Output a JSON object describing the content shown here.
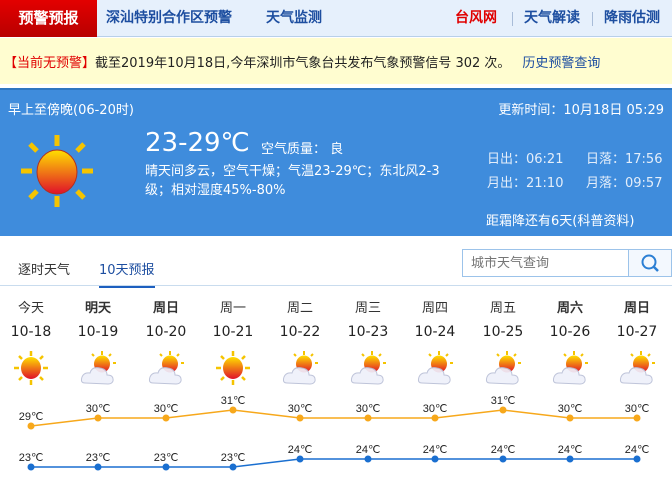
{
  "nav": {
    "active": "预警预报",
    "items": [
      "深汕特别合作区预警",
      "天气监测"
    ],
    "right": [
      {
        "label": "台风网",
        "color": "#e00000"
      },
      {
        "label": "天气解读",
        "color": "#1d4ea0"
      },
      {
        "label": "降雨估测",
        "color": "#1d4ea0"
      }
    ]
  },
  "warning": {
    "status": "【当前无预警】",
    "text": "截至2019年10月18日,今年深圳市气象台共发布气象预警信号 302 次。",
    "link": "历史预警查询"
  },
  "today": {
    "period": "早上至傍晚(06-20时)",
    "updated": "更新时间：10月18日 05:29",
    "temp": "23-29℃",
    "aqi": "空气质量： 良",
    "desc": "晴天间多云，空气干燥；气温23-29℃；东北风2-3级；相对湿度45%-80%",
    "sunrise": "日出：06:21",
    "sunset": "日落：17:56",
    "moonrise": "月出：21:10",
    "moonset": "月落：09:57",
    "frost": "距霜降还有6天(科普资料)",
    "icon": "sunny-icon"
  },
  "tabs": [
    {
      "label": "逐时天气",
      "active": false
    },
    {
      "label": "10天预报",
      "active": true
    }
  ],
  "search": {
    "placeholder": "城市天气查询",
    "icon": "search-icon"
  },
  "forecast": [
    {
      "day": "今天",
      "date": "10-18",
      "icon": "sunny",
      "high": 29,
      "low": 23,
      "bold": false
    },
    {
      "day": "明天",
      "date": "10-19",
      "icon": "partly-cloudy",
      "high": 30,
      "low": 23,
      "bold": true
    },
    {
      "day": "周日",
      "date": "10-20",
      "icon": "partly-cloudy",
      "high": 30,
      "low": 23,
      "bold": true
    },
    {
      "day": "周一",
      "date": "10-21",
      "icon": "sunny",
      "high": 31,
      "low": 23,
      "bold": false
    },
    {
      "day": "周二",
      "date": "10-22",
      "icon": "partly-cloudy",
      "high": 30,
      "low": 24,
      "bold": false
    },
    {
      "day": "周三",
      "date": "10-23",
      "icon": "partly-cloudy",
      "high": 30,
      "low": 24,
      "bold": false
    },
    {
      "day": "周四",
      "date": "10-24",
      "icon": "partly-cloudy",
      "high": 30,
      "low": 24,
      "bold": false
    },
    {
      "day": "周五",
      "date": "10-25",
      "icon": "partly-cloudy",
      "high": 31,
      "low": 24,
      "bold": false
    },
    {
      "day": "周六",
      "date": "10-26",
      "icon": "partly-cloudy",
      "high": 30,
      "low": 24,
      "bold": true
    },
    {
      "day": "周日",
      "date": "10-27",
      "icon": "partly-cloudy",
      "high": 30,
      "low": 24,
      "bold": true
    }
  ],
  "unit": "℃",
  "colors": {
    "high_line": "#f7a81b",
    "low_line": "#1a6fd0",
    "panel": "#3f8cdc"
  }
}
